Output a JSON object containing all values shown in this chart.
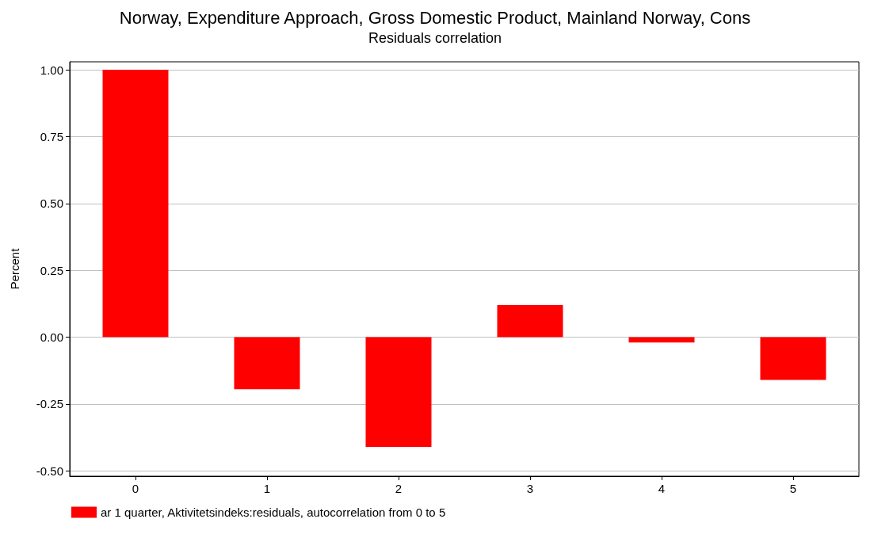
{
  "chart_data": {
    "type": "bar",
    "title": "Norway, Expenditure Approach, Gross Domestic Product, Mainland Norway, Cons",
    "subtitle": "Residuals correlation",
    "ylabel": "Percent",
    "categories": [
      "0",
      "1",
      "2",
      "3",
      "4",
      "5"
    ],
    "series": [
      {
        "name": "ar 1 quarter, Aktivitetsindeks:residuals, autocorrelation from 0 to 5",
        "color": "#ff0000",
        "values": [
          1.0,
          -0.195,
          -0.41,
          0.12,
          -0.02,
          -0.16
        ]
      }
    ],
    "ylim": [
      -0.52,
      1.03
    ],
    "yticks": [
      {
        "value": -0.5,
        "label": "-0.50"
      },
      {
        "value": -0.25,
        "label": "-0.25"
      },
      {
        "value": 0,
        "label": "0.00"
      },
      {
        "value": 0.25,
        "label": "0.25"
      },
      {
        "value": 0.5,
        "label": "0.50"
      },
      {
        "value": 0.75,
        "label": "0.75"
      },
      {
        "value": 1,
        "label": "1.00"
      }
    ],
    "grid": "y",
    "legend": "bottom left"
  }
}
